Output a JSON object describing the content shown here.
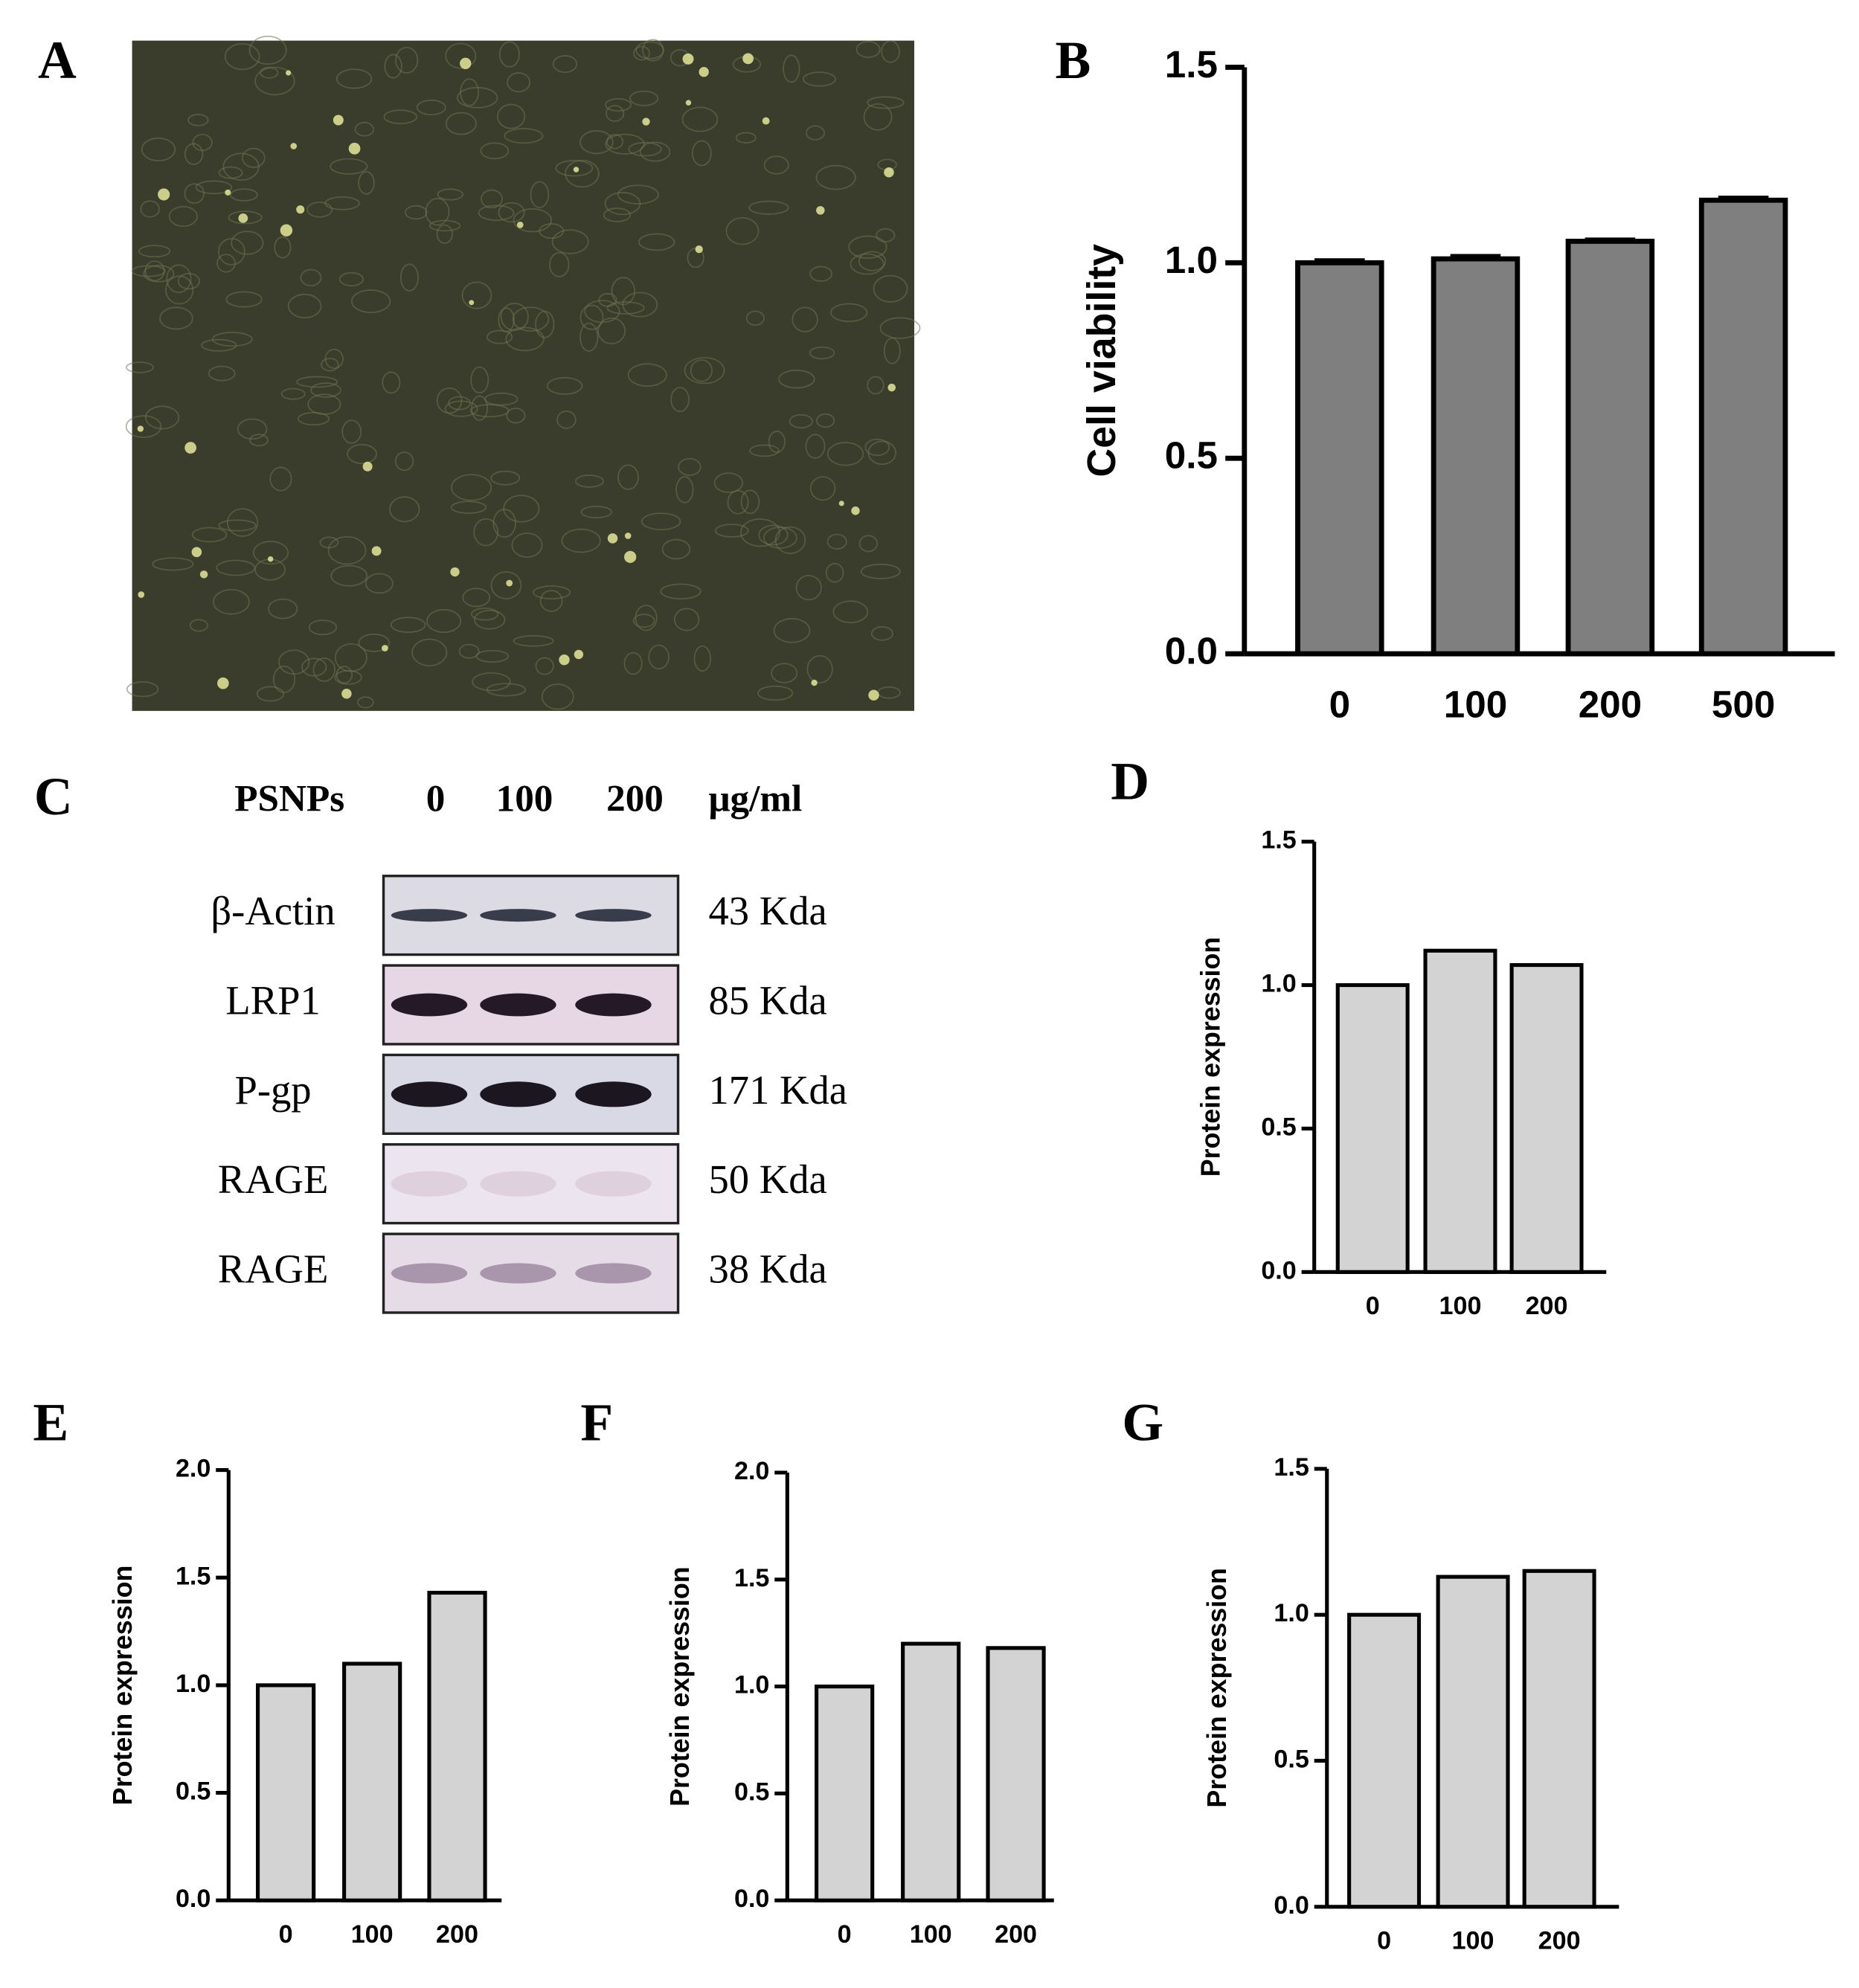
{
  "panel_labels": [
    "A",
    "B",
    "C",
    "D",
    "E",
    "F",
    "G"
  ],
  "blot": {
    "header": "PSNPs",
    "lanes": [
      "0",
      "100",
      "200"
    ],
    "unit": "μg/ml",
    "rows": [
      {
        "protein": "β-Actin",
        "size": "43 Kda"
      },
      {
        "protein": "LRP1",
        "size": "85 Kda"
      },
      {
        "protein": "P-gp",
        "size": "171 Kda"
      },
      {
        "protein": "RAGE",
        "size": "50 Kda"
      },
      {
        "protein": "RAGE",
        "size": "38 Kda"
      }
    ]
  },
  "chart_data": [
    {
      "type": "bar",
      "y_label": "Cell viability",
      "categories": [
        "0",
        "100",
        "200",
        "500"
      ],
      "values": [
        1.0,
        1.01,
        1.055,
        1.16
      ],
      "errors": [
        0.005,
        0.006,
        0.003,
        0.005
      ],
      "color": "#7f7f7f",
      "ylim": [
        0,
        1.5
      ],
      "yticks": [
        {
          "value": 0,
          "label": "0.0"
        },
        0.5,
        {
          "value": 1,
          "label": "1.0"
        },
        1.5
      ]
    },
    {
      "type": "bar",
      "y_label": "Protein expression",
      "categories": [
        "0",
        "100",
        "200"
      ],
      "values": [
        1.0,
        1.12,
        1.07
      ],
      "color": "#d3d3d3",
      "ylim": [
        0,
        1.5
      ],
      "yticks": [
        {
          "value": 0,
          "label": "0.0"
        },
        0.5,
        {
          "value": 1,
          "label": "1.0"
        },
        1.5
      ]
    },
    {
      "type": "bar",
      "y_label": "Protein expression",
      "categories": [
        "0",
        "100",
        "200"
      ],
      "values": [
        1.0,
        1.1,
        1.43
      ],
      "color": "#d3d3d3",
      "ylim": [
        0,
        2
      ],
      "yticks": [
        {
          "value": 0,
          "label": "0.0"
        },
        0.5,
        {
          "value": 1,
          "label": "1.0"
        },
        1.5,
        {
          "value": 2,
          "label": "2.0"
        }
      ]
    },
    {
      "type": "bar",
      "y_label": "Protein expression",
      "categories": [
        "0",
        "100",
        "200"
      ],
      "values": [
        1.0,
        1.2,
        1.18
      ],
      "color": "#d3d3d3",
      "ylim": [
        0,
        2
      ],
      "yticks": [
        {
          "value": 0,
          "label": "0.0"
        },
        0.5,
        {
          "value": 1,
          "label": "1.0"
        },
        1.5,
        {
          "value": 2,
          "label": "2.0"
        }
      ]
    },
    {
      "type": "bar",
      "y_label": "Protein expression",
      "categories": [
        "0",
        "100",
        "200"
      ],
      "values": [
        1.0,
        1.13,
        1.15
      ],
      "color": "#d3d3d3",
      "ylim": [
        0,
        1.5
      ],
      "yticks": [
        {
          "value": 0,
          "label": "0.0"
        },
        0.5,
        {
          "value": 1,
          "label": "1.0"
        },
        1.5
      ]
    }
  ]
}
